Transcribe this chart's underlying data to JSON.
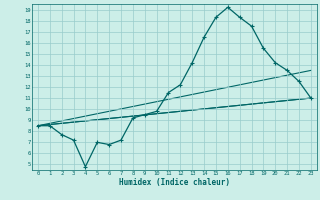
{
  "xlabel": "Humidex (Indice chaleur)",
  "bg_color": "#cceee8",
  "grid_color": "#99cccc",
  "line_color": "#006666",
  "xlim": [
    -0.5,
    23.5
  ],
  "ylim": [
    4.5,
    19.5
  ],
  "xticks": [
    0,
    1,
    2,
    3,
    4,
    5,
    6,
    7,
    8,
    9,
    10,
    11,
    12,
    13,
    14,
    15,
    16,
    17,
    18,
    19,
    20,
    21,
    22,
    23
  ],
  "yticks": [
    5,
    6,
    7,
    8,
    9,
    10,
    11,
    12,
    13,
    14,
    15,
    16,
    17,
    18,
    19
  ],
  "main_curve": [
    [
      0,
      8.5
    ],
    [
      1,
      8.5
    ],
    [
      2,
      7.7
    ],
    [
      3,
      7.2
    ],
    [
      4,
      4.8
    ],
    [
      5,
      7.0
    ],
    [
      6,
      6.8
    ],
    [
      7,
      7.2
    ],
    [
      8,
      9.2
    ],
    [
      9,
      9.5
    ],
    [
      10,
      9.8
    ],
    [
      11,
      11.5
    ],
    [
      12,
      12.2
    ],
    [
      13,
      14.2
    ],
    [
      14,
      16.5
    ],
    [
      15,
      18.3
    ],
    [
      16,
      19.2
    ],
    [
      17,
      18.3
    ],
    [
      18,
      17.5
    ],
    [
      19,
      15.5
    ],
    [
      20,
      14.2
    ],
    [
      21,
      13.5
    ],
    [
      22,
      12.5
    ],
    [
      23,
      11.0
    ]
  ],
  "straight_lines": [
    [
      [
        0,
        8.5
      ],
      [
        23,
        11.0
      ]
    ],
    [
      [
        0,
        8.5
      ],
      [
        23,
        11.0
      ]
    ],
    [
      [
        0,
        8.5
      ],
      [
        23,
        13.5
      ]
    ]
  ]
}
